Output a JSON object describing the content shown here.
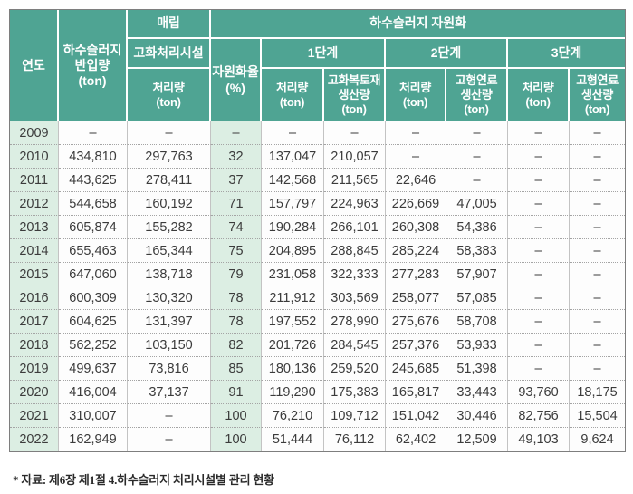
{
  "table": {
    "header": {
      "year": "연도",
      "intake": "하수슬러지\n반입량\n(ton)",
      "landfill": "매립",
      "landfill_facility": "고화처리시설",
      "recycling": "하수슬러지  자원화",
      "recycling_rate": "자원화율\n(%)",
      "stage1": "1단계",
      "stage2": "2단계",
      "stage3": "3단계",
      "treated": "처리량\n(ton)",
      "cover_material": "고화복토재\n생산량\n(ton)",
      "solid_fuel": "고형연료\n생산량\n(ton)"
    },
    "rows": [
      [
        "2009",
        "–",
        "–",
        "–",
        "–",
        "–",
        "–",
        "–",
        "–",
        "–"
      ],
      [
        "2010",
        "434,810",
        "297,763",
        "32",
        "137,047",
        "210,057",
        "–",
        "–",
        "–",
        "–"
      ],
      [
        "2011",
        "443,625",
        "278,411",
        "37",
        "142,568",
        "211,565",
        "22,646",
        "–",
        "–",
        "–"
      ],
      [
        "2012",
        "544,658",
        "160,192",
        "71",
        "157,797",
        "224,963",
        "226,669",
        "47,005",
        "–",
        "–"
      ],
      [
        "2013",
        "605,874",
        "155,282",
        "74",
        "190,284",
        "266,101",
        "260,308",
        "54,386",
        "–",
        "–"
      ],
      [
        "2014",
        "655,463",
        "165,344",
        "75",
        "204,895",
        "288,845",
        "285,224",
        "58,383",
        "–",
        "–"
      ],
      [
        "2015",
        "647,060",
        "138,718",
        "79",
        "231,058",
        "322,333",
        "277,283",
        "57,907",
        "–",
        "–"
      ],
      [
        "2016",
        "600,309",
        "130,320",
        "78",
        "211,912",
        "303,569",
        "258,077",
        "57,085",
        "–",
        "–"
      ],
      [
        "2017",
        "604,625",
        "131,397",
        "78",
        "197,552",
        "278,990",
        "275,676",
        "58,708",
        "–",
        "–"
      ],
      [
        "2018",
        "562,252",
        "103,150",
        "82",
        "201,726",
        "284,545",
        "257,376",
        "53,933",
        "–",
        "–"
      ],
      [
        "2019",
        "499,637",
        "73,816",
        "85",
        "180,136",
        "259,520",
        "245,685",
        "51,398",
        "–",
        "–"
      ],
      [
        "2020",
        "416,004",
        "37,137",
        "91",
        "119,290",
        "175,383",
        "165,817",
        "33,443",
        "93,760",
        "18,175"
      ],
      [
        "2021",
        "310,007",
        "–",
        "100",
        "76,210",
        "109,712",
        "151,042",
        "30,446",
        "82,756",
        "15,504"
      ],
      [
        "2022",
        "162,949",
        "–",
        "100",
        "51,444",
        "76,112",
        "62,402",
        "12,509",
        "49,103",
        "9,624"
      ]
    ],
    "highlight_columns": [
      0,
      3
    ]
  },
  "footnote": "* 자료: 제6장 제1절 4.하수슬러지 처리시설별 관리 현황",
  "colors": {
    "header_bg": "#4fa493",
    "highlight_bg": "#dceee3",
    "cell_bg": "#fdfdfd",
    "text": "#3b3b3b"
  }
}
